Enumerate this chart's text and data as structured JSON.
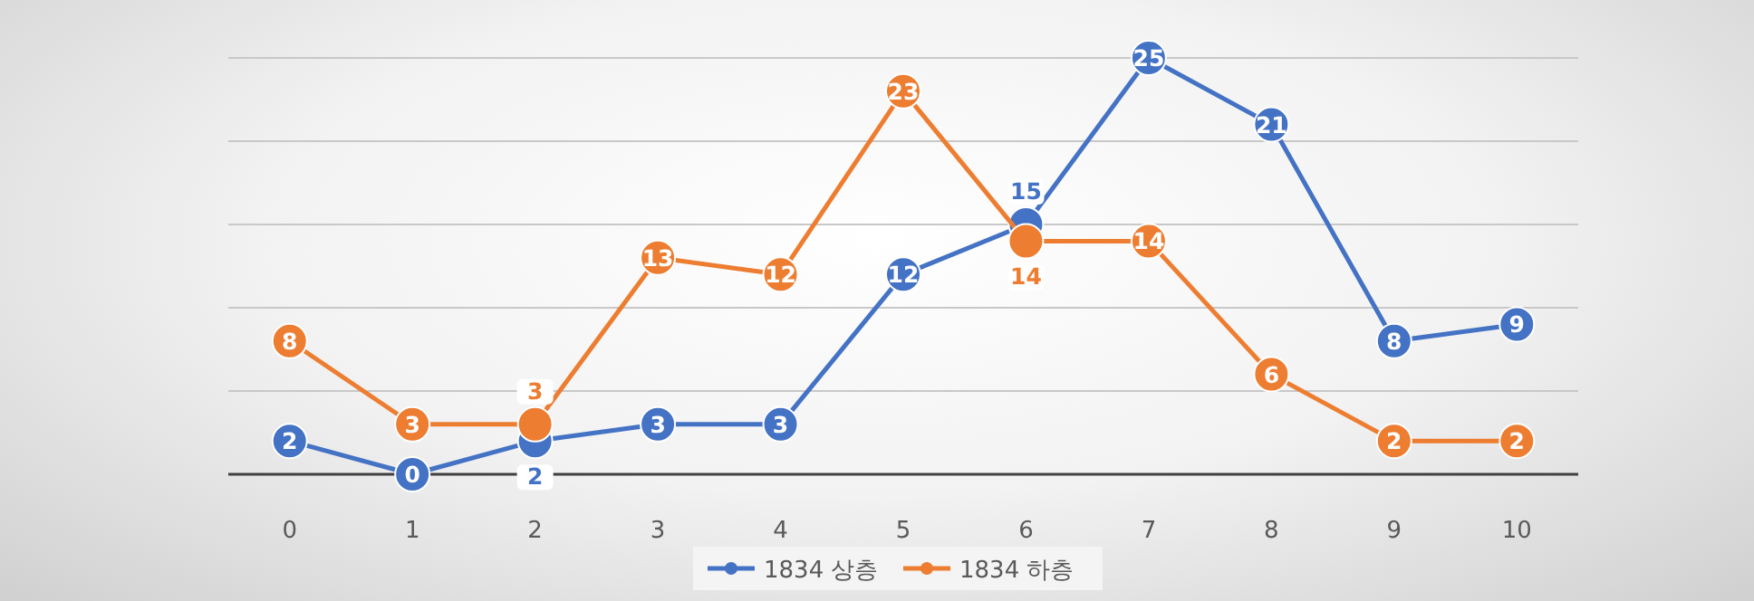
{
  "chart_data": {
    "type": "line",
    "categories": [
      "0",
      "1",
      "2",
      "3",
      "4",
      "5",
      "6",
      "7",
      "8",
      "9",
      "10"
    ],
    "series": [
      {
        "name": "1834 상층",
        "color": "#4472c4",
        "values": [
          2,
          0,
          2,
          3,
          3,
          12,
          15,
          25,
          21,
          8,
          9
        ]
      },
      {
        "name": "1834 하층",
        "color": "#ed7d31",
        "values": [
          8,
          3,
          3,
          13,
          12,
          23,
          14,
          14,
          6,
          2,
          2
        ]
      }
    ],
    "ylim": [
      0,
      25
    ],
    "yticks": [
      {
        "value": 0,
        "label": null
      },
      {
        "value": 5,
        "label": null
      },
      {
        "value": 10,
        "label": null
      },
      {
        "value": 15,
        "label": null
      },
      {
        "value": 20,
        "label": null
      },
      {
        "value": 25,
        "label": null
      }
    ],
    "tick_labels": "x",
    "grid": "y",
    "legend": "bottom",
    "marker": "circle",
    "line_style": "solid",
    "data_labels": true
  }
}
